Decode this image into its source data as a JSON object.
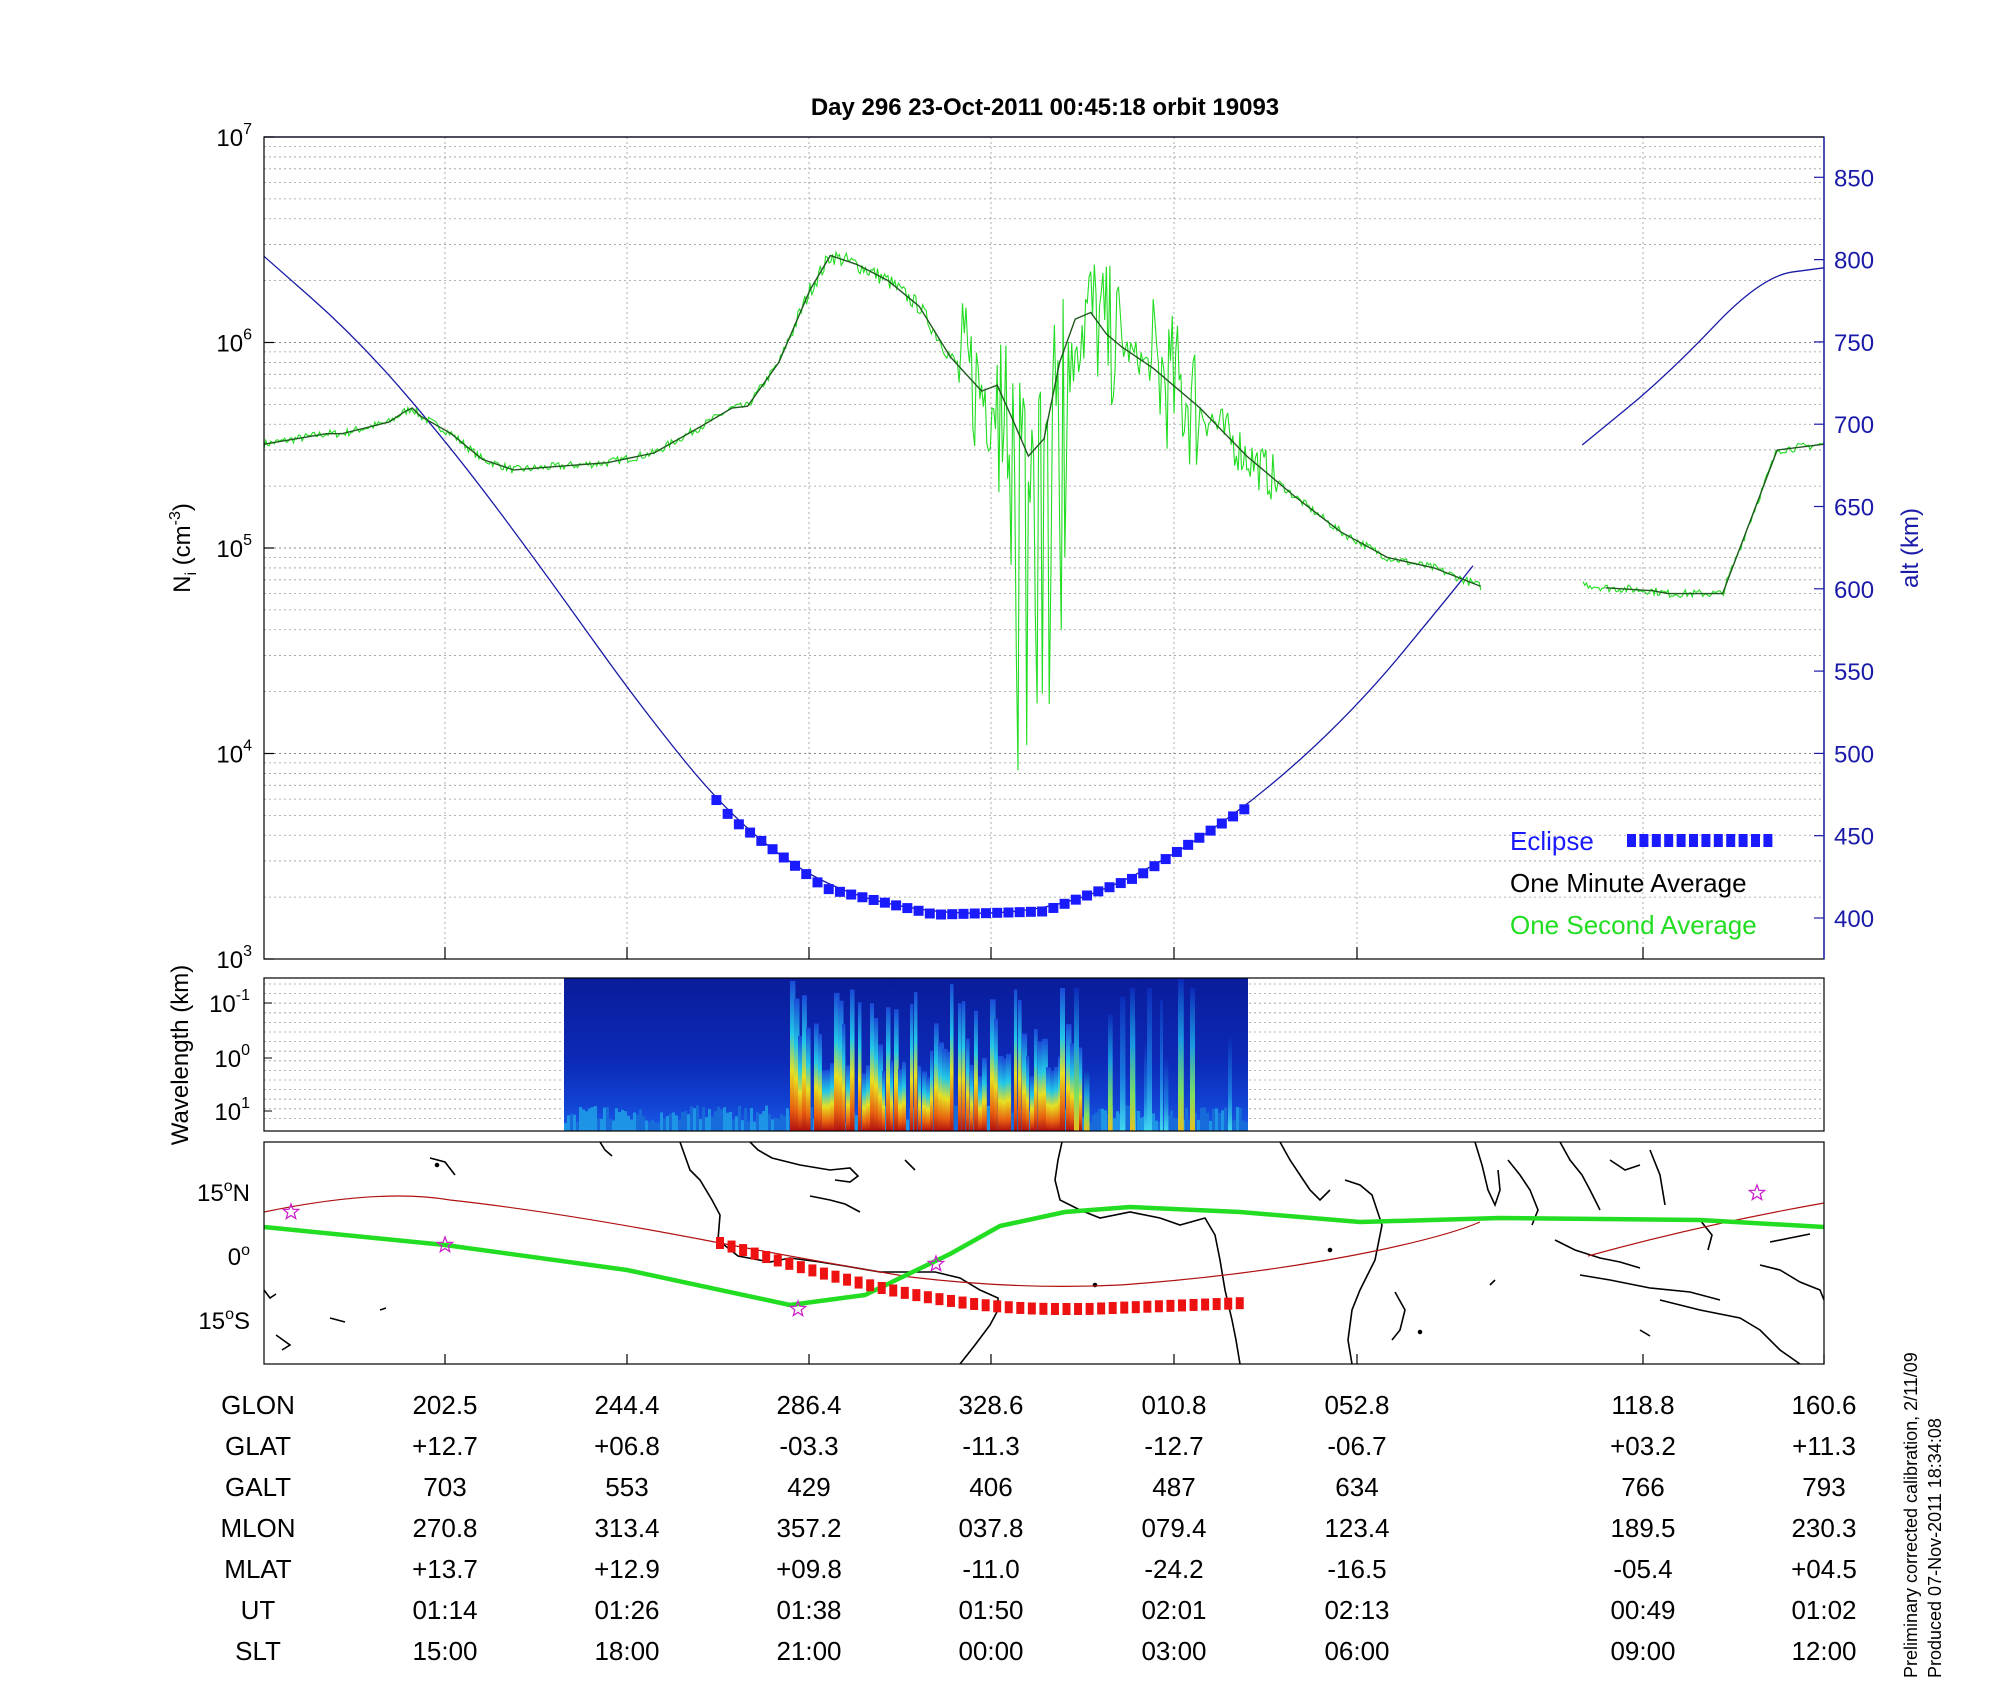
{
  "title": "Day 296  23-Oct-2011 00:45:18   orbit 19093",
  "ni_panel": {
    "ylabel_main": "N",
    "ylabel_sub": "i",
    "ylabel_unit_open": " (cm",
    "ylabel_unit_exp": "-3",
    "ylabel_unit_close": ")",
    "y_tick_base": "10",
    "y_tick_exps": [
      "3",
      "4",
      "5",
      "6",
      "7"
    ],
    "alt_label": "alt (km)",
    "alt_ticks": [
      "400",
      "450",
      "500",
      "550",
      "600",
      "650",
      "700",
      "750",
      "800",
      "850"
    ],
    "legend": [
      {
        "label": "Eclipse",
        "color": "#1a1aff",
        "style": "squares"
      },
      {
        "label": "One Minute Average",
        "color": "#000000",
        "style": "text"
      },
      {
        "label": "One Second Average",
        "color": "#22dd22",
        "style": "text"
      }
    ]
  },
  "spectrogram_panel": {
    "ylabel": "Wavelength (km)",
    "y_tick_base": "10",
    "y_tick_exps": [
      "-1",
      "0",
      "1"
    ]
  },
  "map_panel": {
    "lat_ticks": [
      {
        "num": "15",
        "unit": "o",
        "hemi": "N"
      },
      {
        "num": "0",
        "unit": "o",
        "hemi": ""
      },
      {
        "num": "15",
        "unit": "o",
        "hemi": "S"
      }
    ]
  },
  "table": {
    "row_labels": [
      "GLON",
      "GLAT",
      "GALT",
      "MLON",
      "MLAT",
      "UT",
      "SLT"
    ],
    "columns": [
      [
        "202.5",
        "+12.7",
        "703",
        "270.8",
        "+13.7",
        "01:14",
        "15:00"
      ],
      [
        "244.4",
        "+06.8",
        "553",
        "313.4",
        "+12.9",
        "01:26",
        "18:00"
      ],
      [
        "286.4",
        "-03.3",
        "429",
        "357.2",
        "+09.8",
        "01:38",
        "21:00"
      ],
      [
        "328.6",
        "-11.3",
        "406",
        "037.8",
        "-11.0",
        "01:50",
        "00:00"
      ],
      [
        "010.8",
        "-12.7",
        "487",
        "079.4",
        "-24.2",
        "02:01",
        "03:00"
      ],
      [
        "052.8",
        "-06.7",
        "634",
        "123.4",
        "-16.5",
        "02:13",
        "06:00"
      ],
      [
        "118.8",
        "+03.2",
        "766",
        "189.5",
        "-05.4",
        "00:49",
        "09:00"
      ],
      [
        "160.6",
        "+11.3",
        "793",
        "230.3",
        "+04.5",
        "01:02",
        "12:00"
      ]
    ]
  },
  "footnote": {
    "line1": "Preliminary corrected calibration, 2/11/09",
    "line2": "Produced 07-Nov-2011 18:34:08"
  },
  "colors": {
    "axis": "#000000",
    "altitude": "#1a1aa8",
    "eclipse": "#1a1aff",
    "minute_avg": "#1e5a1e",
    "second_avg": "#22dd22",
    "orbit_track": "#b01010",
    "eclipse_track": "#ee1111",
    "geomag_equator": "#22dd22"
  },
  "chart_data": [
    {
      "type": "line",
      "panel": "ion density and altitude",
      "x_note": "time along orbit; columns labelled by UT in the table below",
      "x_ticks_ut": [
        "01:14",
        "01:26",
        "01:38",
        "01:50",
        "02:01",
        "02:13",
        "00:49",
        "01:02"
      ],
      "yscale": "log",
      "ylim": [
        1000,
        10000000
      ],
      "y2lim": [
        380,
        880
      ],
      "series": [
        {
          "name": "One Minute Average",
          "axis": "left",
          "points": [
            [
              0.0,
              320000
            ],
            [
              0.04,
              360000
            ],
            [
              0.05,
              360000
            ],
            [
              0.08,
              410000
            ],
            [
              0.09,
              460000
            ],
            [
              0.095,
              480000
            ],
            [
              0.1,
              440000
            ],
            [
              0.12,
              360000
            ],
            [
              0.14,
              270000
            ],
            [
              0.16,
              240000
            ],
            [
              0.19,
              250000
            ],
            [
              0.22,
              260000
            ],
            [
              0.25,
              290000
            ],
            [
              0.28,
              390000
            ],
            [
              0.3,
              480000
            ],
            [
              0.31,
              490000
            ],
            [
              0.33,
              800000
            ],
            [
              0.35,
              1800000
            ],
            [
              0.363,
              2650000
            ],
            [
              0.38,
              2400000
            ],
            [
              0.4,
              2000000
            ],
            [
              0.42,
              1500000
            ],
            [
              0.44,
              850000
            ],
            [
              0.46,
              580000
            ],
            [
              0.47,
              620000
            ],
            [
              0.48,
              420000
            ],
            [
              0.49,
              280000
            ],
            [
              0.5,
              340000
            ],
            [
              0.51,
              800000
            ],
            [
              0.52,
              1300000
            ],
            [
              0.53,
              1400000
            ],
            [
              0.54,
              1100000
            ],
            [
              0.55,
              950000
            ],
            [
              0.57,
              750000
            ],
            [
              0.6,
              480000
            ],
            [
              0.63,
              280000
            ],
            [
              0.66,
              180000
            ],
            [
              0.69,
              120000
            ],
            [
              0.72,
              90000
            ],
            [
              0.75,
              80000
            ],
            [
              0.78,
              65000
            ],
            [
              0.8,
              54000
            ],
            [
              0.82,
              58000
            ],
            [
              0.84,
              68000
            ],
            [
              0.86,
              64000
            ],
            [
              0.89,
              62000
            ],
            [
              0.9,
              60000
            ],
            [
              0.935,
              60000
            ],
            [
              0.97,
              300000
            ],
            [
              1.0,
              320000
            ]
          ]
        },
        {
          "name": "One Second Average",
          "axis": "left",
          "note": "follows the one minute average with fluctuations between about 4e3 and 2e6 near the x range 0.47 to 0.60"
        },
        {
          "name": "alt",
          "axis": "right",
          "values_km": [
            [
              0.0,
              802
            ],
            [
              0.06,
              752
            ],
            [
              0.12,
              686
            ],
            [
              0.18,
              610
            ],
            [
              0.24,
              530
            ],
            [
              0.3,
              460
            ],
            [
              0.36,
              418
            ],
            [
              0.43,
              402
            ],
            [
              0.5,
              404
            ],
            [
              0.56,
              425
            ],
            [
              0.63,
              467
            ],
            [
              0.7,
              527
            ],
            [
              0.76,
              596
            ],
            [
              0.82,
              668
            ],
            [
              0.9,
              730
            ],
            [
              0.96,
              790
            ],
            [
              1.0,
              795
            ]
          ]
        }
      ],
      "eclipse_range": [
        0.29,
        0.63
      ]
    },
    {
      "type": "heatmap",
      "panel": "wavelength spectrogram",
      "ylabel": "Wavelength (km)",
      "x_range": [
        0.19,
        0.63
      ],
      "note": "intense emission concentrated near x 0.45 to 0.60"
    }
  ]
}
